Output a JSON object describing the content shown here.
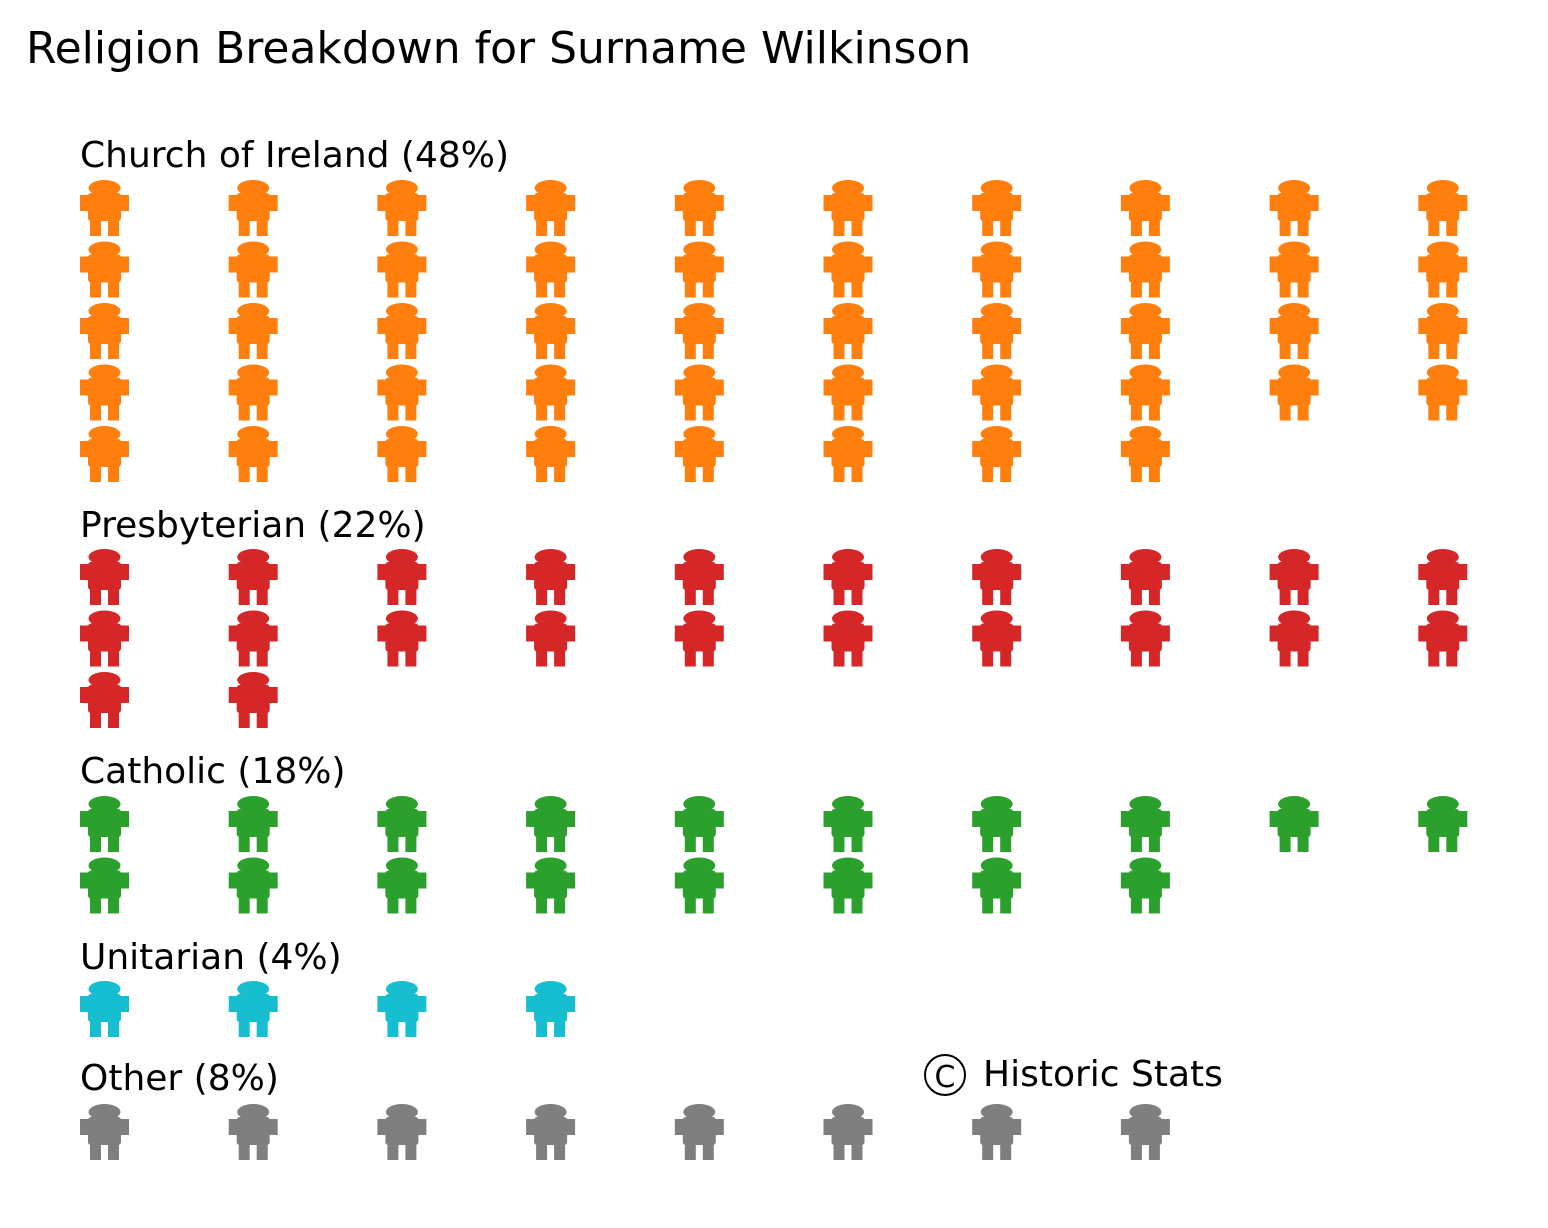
{
  "chart_data": {
    "type": "pictograph",
    "title": "Religion Breakdown for Surname Wilkinson",
    "units_per_icon": 1,
    "icons_per_row": 10,
    "icon": "person-icon",
    "groups": [
      {
        "label": "Church of Ireland (48%)",
        "name": "Church of Ireland",
        "percent": 48,
        "count": 48,
        "color": "#ff7f0e"
      },
      {
        "label": "Presbyterian (22%)",
        "name": "Presbyterian",
        "percent": 22,
        "count": 22,
        "color": "#d62728"
      },
      {
        "label": "Catholic (18%)",
        "name": "Catholic",
        "percent": 18,
        "count": 18,
        "color": "#2ca02c"
      },
      {
        "label": "Unitarian (4%)",
        "name": "Unitarian",
        "percent": 4,
        "count": 4,
        "color": "#17becf"
      },
      {
        "label": "Other (8%)",
        "name": "Other",
        "percent": 8,
        "count": 8,
        "color": "#7f7f7f"
      }
    ],
    "credit": {
      "symbol": "C",
      "text": "Historic Stats"
    }
  }
}
